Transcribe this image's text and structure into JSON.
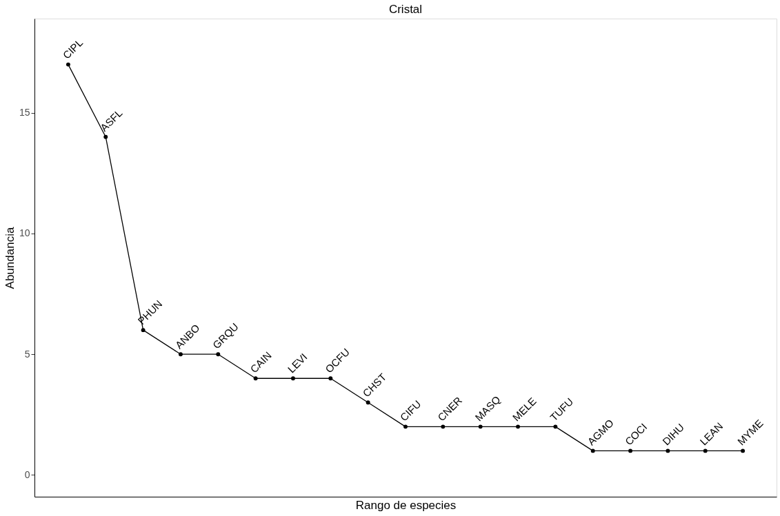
{
  "chart_data": {
    "type": "line",
    "title": "Cristal",
    "xlabel": "Rango de especies",
    "ylabel": "Abundancia",
    "categories": [
      null,
      null,
      null,
      null,
      null,
      null,
      null,
      null,
      null,
      null,
      null,
      null,
      null,
      null,
      null,
      null,
      null,
      null,
      null
    ],
    "series": [
      {
        "color": "#000000",
        "values": [
          17,
          14,
          6,
          5,
          5,
          4,
          4,
          4,
          3,
          2,
          2,
          2,
          2,
          2,
          1,
          1,
          1,
          1,
          1
        ],
        "value_labels": [
          "CIPL",
          "ASFL",
          "PHUN",
          "ANBO",
          "GRQU",
          "CAIN",
          "LEVI",
          "OCFU",
          "CHST",
          "CIFU",
          "CNER",
          "MASQ",
          "MELE",
          "TUFU",
          "AGMO",
          "COCI",
          "DIHU",
          "LEAN",
          "MYME"
        ]
      }
    ],
    "ylim": [
      -0.9,
      18.9
    ],
    "yticks": [
      0,
      5,
      10,
      15
    ],
    "tick_labels": "y",
    "grid": false,
    "marker": "circle",
    "line_style": "solid"
  }
}
